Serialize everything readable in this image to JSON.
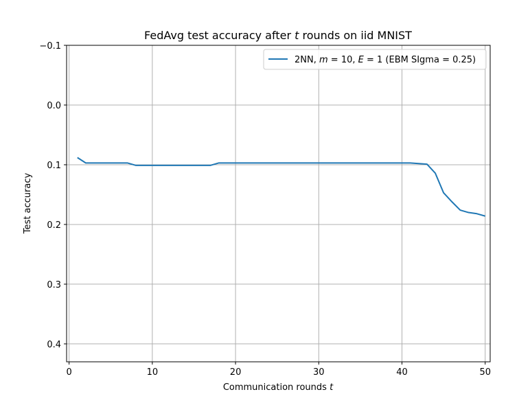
{
  "chart_data": {
    "type": "line",
    "title": "FedAvg test accuracy after t rounds on iid MNIST",
    "xlabel": "Communication rounds t",
    "ylabel": "Test accuracy",
    "xlim": [
      -0.3,
      50.6
    ],
    "ylim": [
      0.43,
      -0.1
    ],
    "y_inverted": true,
    "grid": true,
    "legend_position": "upper-right",
    "xticks": [
      0,
      10,
      20,
      30,
      40,
      50
    ],
    "xtick_labels": [
      "0",
      "10",
      "20",
      "30",
      "40",
      "50"
    ],
    "yticks": [
      -0.1,
      0.0,
      0.1,
      0.2,
      0.3,
      0.4
    ],
    "ytick_labels": [
      "−0.1",
      "0.0",
      "0.1",
      "0.2",
      "0.3",
      "0.4"
    ],
    "series": [
      {
        "name": "2NN, m = 10, E = 1 (EBM SIgma = 0.25)",
        "color": "#1f77b4",
        "x": [
          1,
          2,
          3,
          4,
          5,
          6,
          7,
          8,
          9,
          10,
          11,
          12,
          13,
          14,
          15,
          16,
          17,
          18,
          19,
          20,
          21,
          22,
          23,
          24,
          25,
          26,
          27,
          28,
          29,
          30,
          31,
          32,
          33,
          34,
          35,
          36,
          37,
          38,
          39,
          40,
          41,
          42,
          43,
          44,
          45,
          46,
          47,
          48,
          49,
          50
        ],
        "y": [
          0.088,
          0.097,
          0.097,
          0.097,
          0.097,
          0.097,
          0.097,
          0.101,
          0.101,
          0.101,
          0.101,
          0.101,
          0.101,
          0.101,
          0.101,
          0.101,
          0.101,
          0.097,
          0.097,
          0.097,
          0.097,
          0.097,
          0.097,
          0.097,
          0.097,
          0.097,
          0.097,
          0.097,
          0.097,
          0.097,
          0.097,
          0.097,
          0.097,
          0.097,
          0.097,
          0.097,
          0.097,
          0.097,
          0.097,
          0.097,
          0.097,
          0.098,
          0.099,
          0.114,
          0.147,
          0.162,
          0.176,
          0.18,
          0.182,
          0.186
        ]
      }
    ]
  }
}
